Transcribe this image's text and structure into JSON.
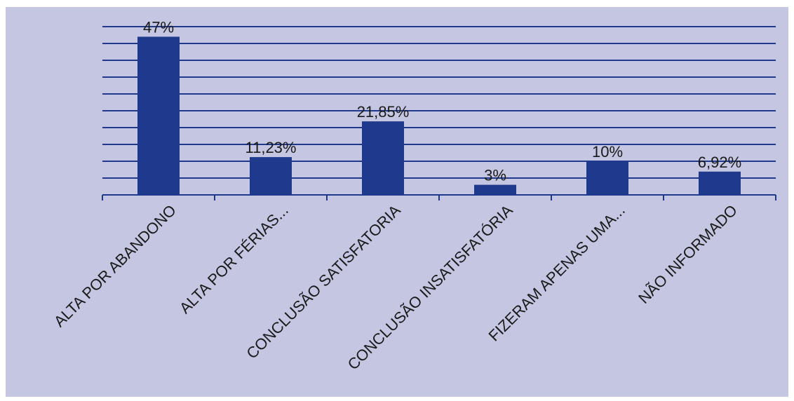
{
  "colors": {
    "background": "#c5c6e2",
    "bar": "#1f3a8c",
    "gridline": "#1f3a8c"
  },
  "chart_data": {
    "type": "bar",
    "title": "",
    "xlabel": "",
    "ylabel": "",
    "grid": true,
    "ylim": [
      0,
      50
    ],
    "categories": [
      "ALTA POR ABANDONO",
      "ALTA POR FÉRIAS...",
      "CONCLUSÃO SATISFATORIA",
      "CONCLUSÃO INSATISFATÓRIA",
      "FIZERAM APENAS UMA...",
      "NÃO INFORMADO"
    ],
    "values": [
      47,
      11.23,
      21.85,
      3,
      10,
      6.92
    ],
    "data_labels": [
      "47%",
      "11,23%",
      "21,85%",
      "3%",
      "10%",
      "6,92%"
    ]
  }
}
